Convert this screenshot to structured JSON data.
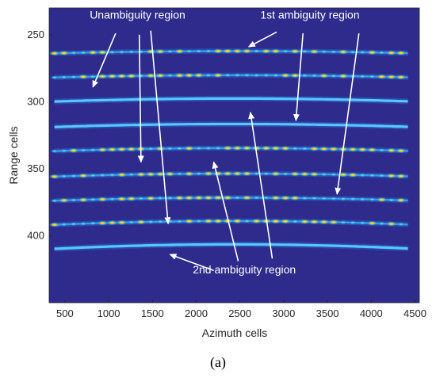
{
  "chart_data": {
    "type": "heatmap",
    "xlabel": "Azimuth cells",
    "ylabel": "Range cells",
    "xlim": [
      320,
      4550
    ],
    "ylim": [
      450,
      230
    ],
    "x_ticks": [
      500,
      1000,
      1500,
      2000,
      2500,
      3000,
      3500,
      4000,
      4500
    ],
    "y_ticks": [
      250,
      300,
      350,
      400
    ],
    "x_tick_labels": [
      "500",
      "1000",
      "1500",
      "2000",
      "2500",
      "3000",
      "3500",
      "4000",
      "4500"
    ],
    "y_tick_labels": [
      "250",
      "300",
      "350",
      "400"
    ],
    "colormap": "parula",
    "background_color": "#2e2b8c",
    "bands": [
      {
        "range_cell": 264,
        "kind": "dotted",
        "curvature": 3
      },
      {
        "range_cell": 282,
        "kind": "dotted",
        "curvature": 3
      },
      {
        "range_cell": 300,
        "kind": "continuous",
        "curvature": 4
      },
      {
        "range_cell": 319,
        "kind": "continuous",
        "curvature": 4
      },
      {
        "range_cell": 337,
        "kind": "dotted",
        "curvature": 4
      },
      {
        "range_cell": 356,
        "kind": "dotted",
        "curvature": 4
      },
      {
        "range_cell": 374,
        "kind": "dotted",
        "curvature": 4
      },
      {
        "range_cell": 392,
        "kind": "dotted",
        "curvature": 5
      },
      {
        "range_cell": 410,
        "kind": "continuous",
        "curvature": 6
      }
    ],
    "annotations": [
      {
        "text": "Unambiguity region",
        "x": 1330,
        "y": 238,
        "arrows_to": [
          [
            820,
            289
          ],
          [
            1370,
            345
          ],
          [
            1680,
            391
          ]
        ],
        "arrows_from": [
          [
            1080,
            249
          ],
          [
            1350,
            250
          ],
          [
            1480,
            247
          ]
        ]
      },
      {
        "text": "1st ambiguity region",
        "x": 3300,
        "y": 238,
        "arrows_to": [
          [
            2600,
            259
          ],
          [
            3140,
            314
          ],
          [
            3610,
            369
          ]
        ],
        "arrows_from": [
          [
            2920,
            248
          ],
          [
            3220,
            249
          ],
          [
            3860,
            249
          ]
        ]
      },
      {
        "text": "2nd ambiguity region",
        "x": 2550,
        "y": 428,
        "arrows_to": [
          [
            1700,
            414
          ],
          [
            2620,
            308
          ],
          [
            2200,
            345
          ]
        ],
        "arrows_from": [
          [
            2200,
            426
          ],
          [
            2870,
            417
          ],
          [
            2480,
            419
          ]
        ]
      }
    ]
  },
  "caption": "(a)"
}
